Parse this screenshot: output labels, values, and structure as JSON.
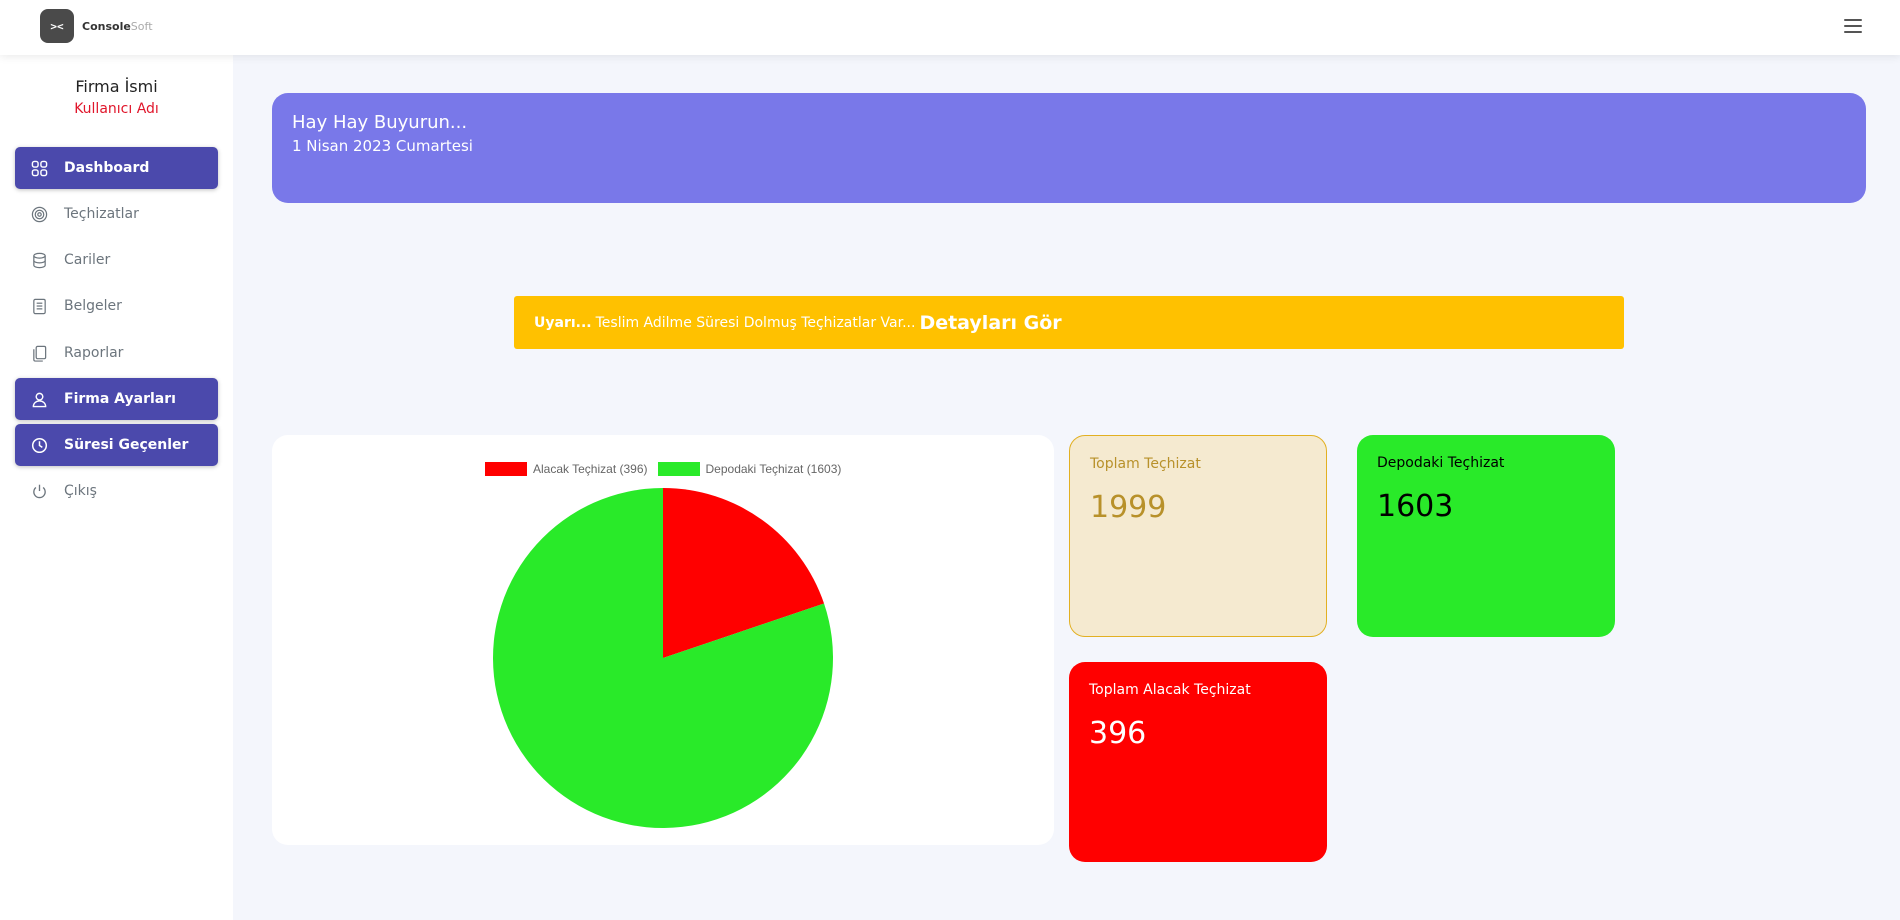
{
  "brand": {
    "logo_mark": "><",
    "name_bold": "Console",
    "name_light": "Soft"
  },
  "sidebar": {
    "company_name": "Firma İsmi",
    "user_name": "Kullanıcı Adı",
    "items": [
      {
        "label": "Dashboard",
        "icon": "grid-icon",
        "active": true
      },
      {
        "label": "Teçhizatlar",
        "icon": "target-icon",
        "active": false
      },
      {
        "label": "Cariler",
        "icon": "database-icon",
        "active": false
      },
      {
        "label": "Belgeler",
        "icon": "document-icon",
        "active": false
      },
      {
        "label": "Raporlar",
        "icon": "copy-icon",
        "active": false
      },
      {
        "label": "Firma Ayarları",
        "icon": "user-icon",
        "active": true
      },
      {
        "label": "Süresi Geçenler",
        "icon": "clock-icon",
        "active": true
      },
      {
        "label": "Çıkış",
        "icon": "power-icon",
        "active": false
      }
    ]
  },
  "welcome": {
    "title": "Hay Hay Buyurun...",
    "date": "1 Nisan 2023 Cumartesi"
  },
  "alert": {
    "strong": "Uyarı...",
    "message": "Teslim Adilme Süresi Dolmuş Teçhizatlar Var...",
    "link": "Detayları Gör"
  },
  "stats": {
    "total": {
      "label": "Toplam Teçhizat",
      "value": "1999"
    },
    "depot": {
      "label": "Depodaki Teçhizat",
      "value": "1603"
    },
    "alacak": {
      "label": "Toplam Alacak Teçhizat",
      "value": "396"
    }
  },
  "colors": {
    "accent": "#4b49ac",
    "banner": "#7978e9",
    "warning": "#ffc100",
    "green": "#29ea29",
    "red": "#ff0000"
  },
  "chart_data": {
    "type": "pie",
    "categories": [
      "Alacak Teçhizat (396)",
      "Depodaki Teçhizat (1603)"
    ],
    "values": [
      396,
      1603
    ],
    "colors": [
      "#ff0000",
      "#29ea29"
    ],
    "legend_position": "top"
  }
}
